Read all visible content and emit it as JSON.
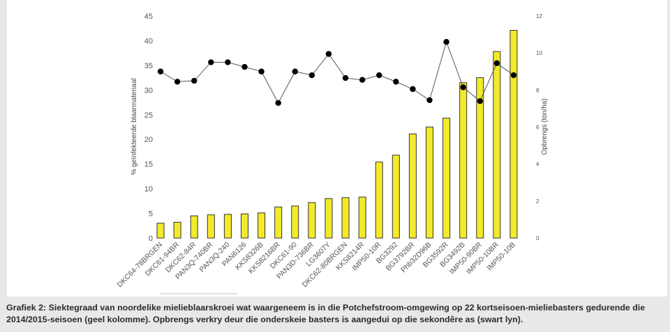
{
  "chart_data": {
    "type": "bar",
    "categories": [
      "DKC64-78BRGEN",
      "DKC61-94BR",
      "DKC62-84R",
      "PAN3Q-740BR",
      "PAN3Q-240",
      "PAN6126",
      "KKS8326B",
      "KKS8216BR",
      "DKC61-90",
      "PAN3D-736BR",
      "LG3607Y",
      "DKC62-80BRGEN",
      "KKS8214R",
      "IMP50-10R",
      "BG3292",
      "BG3792BR",
      "Phb32D96B",
      "BG3592R",
      "BG3492B",
      "IMP50-90BR",
      "IMP50-10BR",
      "IMP50-10B"
    ],
    "series": [
      {
        "type": "bar",
        "axis": "left",
        "color": "#f2ea2a",
        "values": [
          3.0,
          3.2,
          4.5,
          4.7,
          4.8,
          4.9,
          5.1,
          6.3,
          6.5,
          7.2,
          8.0,
          8.2,
          8.3,
          15.4,
          16.8,
          21.1,
          22.5,
          24.3,
          31.5,
          32.5,
          37.8,
          42.1
        ]
      },
      {
        "type": "line",
        "axis": "right",
        "color": "#000000",
        "values": [
          9.0,
          8.45,
          8.5,
          9.5,
          9.5,
          9.25,
          9.0,
          7.3,
          9.0,
          8.8,
          9.95,
          8.65,
          8.55,
          8.8,
          8.45,
          8.05,
          7.45,
          10.6,
          8.15,
          7.4,
          9.45,
          8.8
        ]
      }
    ],
    "ylabel": "% geïnfekteerde blaarmateriaal",
    "ylim": [
      0,
      45
    ],
    "yticks": [
      0,
      5,
      10,
      15,
      20,
      25,
      30,
      35,
      40,
      45
    ],
    "y2label": "Opbrengs (ton/ha)",
    "y2lim": [
      0,
      12
    ],
    "y2ticks": [
      0,
      2,
      4,
      6,
      8,
      10,
      12
    ]
  },
  "caption": "Grafiek 2: Siektegraad van noordelike mielieblaarskroei wat waargeneem is in die Potchefstroom-omgewing op 22 kortseisoen-mieliebasters gedurende die 2014/2015-seisoen (geel kolomme). Opbrengs verkry deur die onderskeie basters is aangedui op die sekondêre as (swart lyn)."
}
